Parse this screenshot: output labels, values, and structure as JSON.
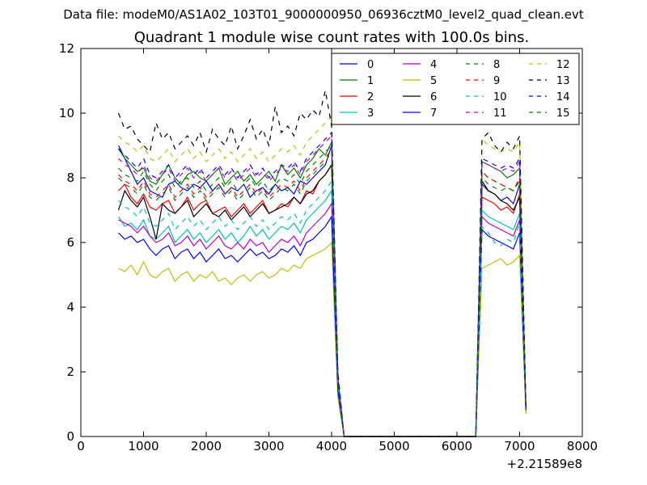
{
  "figure": {
    "suptitle": "Data file: modeM0/AS1A02_103T01_9000000950_06936cztM0_level2_quad_clean.evt",
    "title": "Quadrant 1 module wise count rates with 100.0s bins.",
    "x_offset_label": "+2.21589e8"
  },
  "chart_data": {
    "type": "line",
    "title": "Quadrant 1 module wise count rates with 100.0s bins.",
    "xlabel": "",
    "ylabel": "",
    "xlim": [
      0,
      8000
    ],
    "ylim": [
      0,
      12
    ],
    "x_offset": "+2.21589e8",
    "xticks": [
      0,
      1000,
      2000,
      3000,
      4000,
      5000,
      6000,
      7000,
      8000
    ],
    "yticks": [
      0,
      2,
      4,
      6,
      8,
      10,
      12
    ],
    "grid": false,
    "legend_position": "top-right",
    "x": [
      600,
      700,
      800,
      900,
      1000,
      1100,
      1200,
      1300,
      1400,
      1500,
      1600,
      1700,
      1800,
      1900,
      2000,
      2100,
      2200,
      2300,
      2400,
      2500,
      2600,
      2700,
      2800,
      2900,
      3000,
      3100,
      3200,
      3300,
      3400,
      3500,
      3600,
      3700,
      3800,
      3900,
      4000,
      4100,
      4200,
      4300,
      6300,
      6400,
      6500,
      6600,
      6700,
      6800,
      6900,
      7000,
      7100
    ],
    "series": [
      {
        "name": "0",
        "color": "#0000ff",
        "dash": "solid",
        "values": [
          9.0,
          8.6,
          8.2,
          7.8,
          8.0,
          7.6,
          7.5,
          7.4,
          7.8,
          7.9,
          7.7,
          7.6,
          7.8,
          7.7,
          7.9,
          7.6,
          7.8,
          7.5,
          7.7,
          7.6,
          7.8,
          7.4,
          7.6,
          7.7,
          7.5,
          7.8,
          7.6,
          7.7,
          7.5,
          7.9,
          7.8,
          8.0,
          8.2,
          8.4,
          9.0,
          1.8,
          0,
          0,
          0,
          7.8,
          7.6,
          7.5,
          7.3,
          7.4,
          7.2,
          7.8,
          0.9
        ]
      },
      {
        "name": "1",
        "color": "#008000",
        "dash": "solid",
        "values": [
          8.9,
          8.6,
          8.4,
          8.2,
          8.3,
          7.9,
          7.8,
          8.1,
          8.4,
          8.0,
          7.8,
          8.1,
          8.2,
          8.0,
          7.9,
          8.1,
          8.3,
          7.8,
          8.0,
          8.2,
          7.9,
          8.1,
          7.8,
          8.0,
          8.2,
          7.9,
          8.4,
          8.1,
          8.3,
          8.0,
          8.4,
          8.6,
          8.9,
          8.7,
          9.1,
          1.7,
          0,
          0,
          0,
          8.5,
          8.4,
          8.3,
          8.2,
          8.0,
          8.1,
          8.3,
          0.8
        ]
      },
      {
        "name": "2",
        "color": "#ff0000",
        "dash": "solid",
        "values": [
          7.6,
          7.8,
          7.4,
          7.2,
          7.5,
          7.1,
          7.0,
          7.2,
          7.3,
          6.9,
          7.1,
          7.4,
          7.0,
          7.2,
          7.3,
          6.9,
          7.0,
          7.1,
          6.8,
          7.0,
          7.2,
          6.9,
          7.1,
          7.3,
          6.9,
          7.0,
          7.2,
          7.1,
          7.4,
          7.2,
          7.6,
          7.5,
          7.9,
          8.1,
          8.4,
          1.6,
          0,
          0,
          0,
          7.4,
          7.3,
          7.2,
          7.0,
          7.1,
          6.9,
          7.5,
          0.8
        ]
      },
      {
        "name": "3",
        "color": "#00bfbf",
        "dash": "solid",
        "values": [
          6.8,
          6.5,
          6.6,
          6.4,
          6.7,
          6.2,
          6.1,
          6.3,
          6.5,
          6.0,
          6.2,
          6.4,
          6.1,
          6.3,
          6.0,
          6.2,
          6.4,
          6.1,
          6.3,
          6.0,
          6.2,
          6.5,
          6.2,
          6.4,
          6.1,
          6.3,
          6.5,
          6.4,
          6.6,
          6.3,
          6.7,
          6.9,
          7.1,
          7.3,
          7.6,
          1.5,
          0,
          0,
          0,
          7.0,
          6.8,
          6.7,
          6.6,
          6.5,
          6.4,
          6.9,
          0.8
        ]
      },
      {
        "name": "4",
        "color": "#bf00bf",
        "dash": "solid",
        "values": [
          6.7,
          6.6,
          6.5,
          6.3,
          6.5,
          6.2,
          6.0,
          6.1,
          6.3,
          5.9,
          6.0,
          6.2,
          5.9,
          6.1,
          5.8,
          6.0,
          6.2,
          5.9,
          5.8,
          6.0,
          5.8,
          6.1,
          5.9,
          6.0,
          5.7,
          5.9,
          6.1,
          6.0,
          6.2,
          5.9,
          6.3,
          6.5,
          6.7,
          6.9,
          7.2,
          1.5,
          0,
          0,
          0,
          6.8,
          6.6,
          6.5,
          6.4,
          6.3,
          6.2,
          6.7,
          0.8
        ]
      },
      {
        "name": "5",
        "color": "#bfbf00",
        "dash": "solid",
        "values": [
          5.2,
          5.1,
          5.3,
          5.0,
          5.4,
          5.0,
          4.9,
          5.1,
          5.2,
          4.8,
          5.0,
          5.1,
          4.8,
          5.0,
          4.9,
          5.1,
          4.8,
          4.9,
          4.7,
          4.9,
          5.0,
          4.8,
          5.0,
          5.1,
          4.9,
          5.0,
          5.2,
          5.1,
          5.3,
          5.2,
          5.5,
          5.6,
          5.7,
          5.8,
          6.0,
          1.2,
          0,
          0,
          0,
          5.2,
          5.3,
          5.4,
          5.5,
          5.3,
          5.4,
          5.6,
          0.7
        ]
      },
      {
        "name": "6",
        "color": "#000000",
        "dash": "solid",
        "values": [
          7.0,
          7.6,
          7.3,
          7.1,
          7.4,
          6.8,
          6.1,
          7.2,
          7.0,
          6.9,
          7.1,
          7.3,
          6.8,
          7.0,
          7.2,
          6.9,
          6.8,
          7.0,
          6.7,
          6.9,
          7.1,
          6.8,
          7.0,
          7.2,
          6.9,
          7.0,
          7.1,
          7.2,
          7.4,
          7.2,
          7.5,
          7.6,
          7.9,
          8.1,
          8.4,
          1.7,
          0,
          0,
          0,
          7.9,
          7.6,
          7.5,
          7.3,
          7.2,
          7.0,
          7.4,
          0.8
        ]
      },
      {
        "name": "7",
        "color": "#0000ff",
        "dash": "solid",
        "values": [
          6.3,
          6.1,
          6.2,
          6.0,
          6.1,
          5.8,
          5.6,
          5.8,
          5.9,
          5.5,
          5.7,
          5.8,
          5.5,
          5.7,
          5.4,
          5.6,
          5.8,
          5.5,
          5.6,
          5.4,
          5.6,
          5.8,
          5.6,
          5.7,
          5.5,
          5.6,
          5.8,
          5.7,
          5.9,
          5.6,
          6.0,
          6.1,
          6.3,
          6.5,
          6.8,
          1.4,
          0,
          0,
          0,
          6.4,
          6.2,
          6.1,
          6.0,
          5.9,
          5.8,
          6.3,
          0.8
        ]
      },
      {
        "name": "8",
        "color": "#008000",
        "dash": "dashed",
        "values": [
          8.3,
          8.1,
          8.0,
          7.9,
          8.2,
          7.8,
          7.6,
          7.9,
          8.1,
          7.7,
          7.9,
          8.0,
          7.7,
          7.9,
          7.6,
          7.8,
          8.0,
          7.7,
          7.9,
          7.6,
          7.8,
          8.0,
          7.7,
          7.9,
          7.6,
          7.8,
          8.0,
          7.9,
          8.1,
          7.8,
          8.2,
          8.4,
          8.6,
          8.8,
          9.0,
          1.8,
          0,
          0,
          0,
          8.2,
          8.0,
          7.9,
          7.8,
          7.7,
          7.6,
          8.0,
          0.8
        ]
      },
      {
        "name": "9",
        "color": "#ff0000",
        "dash": "dashed",
        "values": [
          8.1,
          7.9,
          7.8,
          7.6,
          7.9,
          7.5,
          7.4,
          7.6,
          7.8,
          7.4,
          7.6,
          7.8,
          7.5,
          7.7,
          7.4,
          7.6,
          7.8,
          7.5,
          7.7,
          7.4,
          7.6,
          7.8,
          7.5,
          7.7,
          7.4,
          7.6,
          7.8,
          7.7,
          7.9,
          7.6,
          8.0,
          8.2,
          8.4,
          8.6,
          8.9,
          1.7,
          0,
          0,
          0,
          8.2,
          8.0,
          7.9,
          7.8,
          7.7,
          7.6,
          8.0,
          0.8
        ]
      },
      {
        "name": "10",
        "color": "#00bfbf",
        "dash": "dashed",
        "values": [
          7.3,
          7.1,
          7.0,
          6.8,
          7.1,
          6.6,
          6.5,
          6.7,
          6.9,
          6.4,
          6.6,
          6.8,
          6.5,
          6.7,
          6.4,
          6.6,
          6.8,
          6.5,
          6.7,
          6.4,
          6.6,
          6.8,
          6.5,
          6.7,
          6.4,
          6.6,
          6.8,
          6.7,
          6.9,
          6.6,
          7.0,
          7.2,
          7.4,
          7.6,
          7.9,
          1.6,
          0,
          0,
          0,
          6.5,
          6.3,
          6.0,
          5.9,
          6.1,
          6.0,
          6.6,
          0.8
        ]
      },
      {
        "name": "11",
        "color": "#bf00bf",
        "dash": "dashed",
        "values": [
          8.6,
          8.4,
          8.3,
          8.1,
          8.4,
          8.0,
          7.9,
          8.1,
          8.3,
          7.9,
          8.1,
          8.3,
          8.0,
          8.2,
          7.9,
          8.1,
          8.3,
          8.0,
          8.2,
          7.9,
          8.1,
          8.3,
          8.0,
          8.2,
          7.9,
          8.1,
          8.3,
          8.2,
          8.4,
          8.1,
          8.5,
          8.7,
          8.9,
          9.1,
          9.3,
          1.8,
          0,
          0,
          0,
          8.5,
          8.4,
          8.3,
          8.2,
          8.3,
          8.2,
          8.5,
          0.9
        ]
      },
      {
        "name": "12",
        "color": "#bfbf00",
        "dash": "dashed",
        "values": [
          9.3,
          9.1,
          9.0,
          8.8,
          9.0,
          8.6,
          8.5,
          8.7,
          8.9,
          8.5,
          8.7,
          8.9,
          8.6,
          8.8,
          8.5,
          8.7,
          8.9,
          8.6,
          8.8,
          8.5,
          8.7,
          8.9,
          8.6,
          8.8,
          8.5,
          8.7,
          8.9,
          8.8,
          9.0,
          8.7,
          9.1,
          9.3,
          9.5,
          9.7,
          9.9,
          1.9,
          0,
          0,
          0,
          9.2,
          9.0,
          8.9,
          8.8,
          8.9,
          8.8,
          9.1,
          0.9
        ]
      },
      {
        "name": "13",
        "color": "#000000",
        "dash": "dashed",
        "values": [
          10.0,
          9.5,
          9.6,
          9.2,
          9.0,
          8.8,
          9.7,
          9.2,
          9.4,
          8.9,
          9.1,
          9.3,
          9.0,
          9.4,
          8.8,
          9.5,
          9.2,
          9.0,
          9.6,
          8.9,
          9.3,
          9.8,
          9.2,
          9.5,
          9.0,
          10.2,
          9.4,
          9.6,
          9.3,
          10.0,
          9.8,
          10.1,
          9.9,
          10.7,
          9.6,
          2.0,
          0,
          0,
          0,
          9.2,
          9.4,
          9.0,
          8.8,
          9.1,
          8.9,
          9.3,
          0.9
        ]
      },
      {
        "name": "14",
        "color": "#0000ff",
        "dash": "dashed",
        "values": [
          8.9,
          8.7,
          8.5,
          8.3,
          8.6,
          8.1,
          8.0,
          8.2,
          8.4,
          8.0,
          8.2,
          8.4,
          8.1,
          8.3,
          8.0,
          8.2,
          8.4,
          8.1,
          8.3,
          8.0,
          8.2,
          8.4,
          8.1,
          8.3,
          8.0,
          8.2,
          8.4,
          8.3,
          8.5,
          8.2,
          8.6,
          8.8,
          9.0,
          9.2,
          9.4,
          1.8,
          0,
          0,
          0,
          8.6,
          8.5,
          8.4,
          8.3,
          8.4,
          8.3,
          8.6,
          0.9
        ]
      },
      {
        "name": "15",
        "color": "#008000",
        "dash": "dashed",
        "values": [
          8.0,
          7.8,
          7.7,
          7.5,
          7.8,
          7.4,
          7.3,
          7.5,
          7.7,
          7.3,
          7.5,
          7.7,
          7.4,
          7.6,
          7.3,
          7.5,
          7.7,
          7.4,
          7.6,
          7.3,
          7.5,
          7.7,
          7.4,
          7.6,
          7.3,
          7.5,
          7.7,
          7.6,
          7.8,
          7.5,
          7.9,
          8.1,
          8.3,
          8.5,
          8.8,
          1.7,
          0,
          0,
          0,
          8.0,
          7.8,
          7.7,
          7.6,
          7.7,
          7.6,
          7.9,
          0.8
        ]
      }
    ]
  }
}
